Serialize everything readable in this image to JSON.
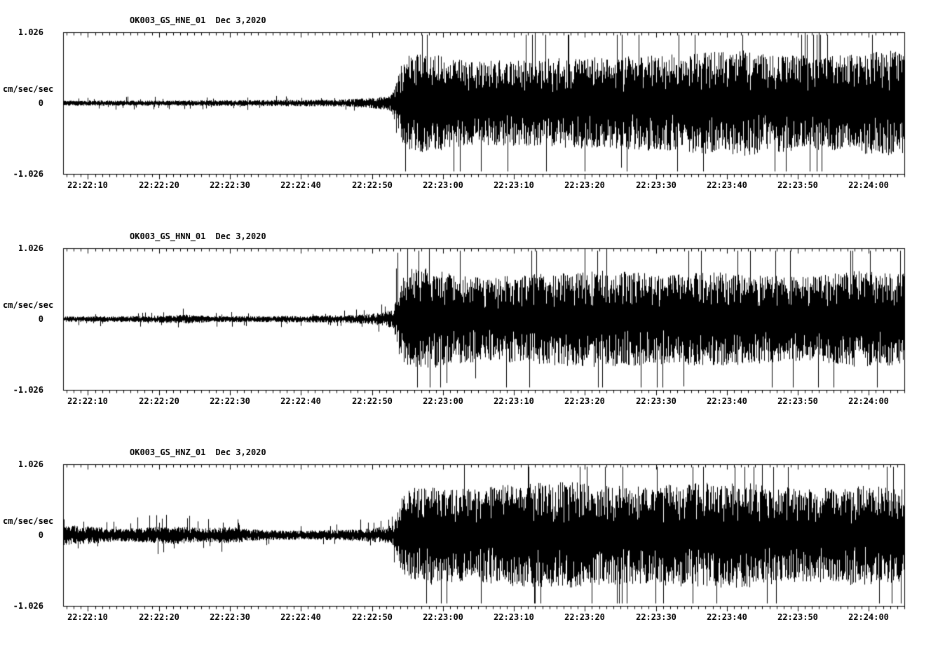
{
  "colors": {
    "trace": "#000000",
    "background": "#ffffff"
  },
  "chart_data": [
    {
      "type": "line",
      "subtype": "seismogram",
      "station_channel": "OK003_GS_HNE_01",
      "date": "Dec 3,2020",
      "ylabel": "cm/sec/sec",
      "ytick_labels": [
        "1.026",
        "0",
        "-1.026"
      ],
      "ylim": [
        -1.026,
        1.026
      ],
      "x_reference_time": "22:22:00",
      "x_start_s": 6.5,
      "x_end_s": 125,
      "x_tick_seconds": [
        10,
        20,
        30,
        40,
        50,
        60,
        70,
        80,
        90,
        100,
        110,
        120
      ],
      "x_ticklabels": [
        "22:22:10",
        "22:22:20",
        "22:22:30",
        "22:22:40",
        "22:22:50",
        "22:23:00",
        "22:23:10",
        "22:23:20",
        "22:23:30",
        "22:23:40",
        "22:23:50",
        "22:24:00"
      ],
      "minor_tick_interval_s": 1,
      "onset_s": 53.5,
      "envelope": [
        [
          6.5,
          0.035
        ],
        [
          20,
          0.035
        ],
        [
          35,
          0.04
        ],
        [
          45,
          0.045
        ],
        [
          50,
          0.07
        ],
        [
          52.5,
          0.1
        ],
        [
          53.5,
          0.3
        ],
        [
          54.5,
          0.62
        ],
        [
          58,
          0.66
        ],
        [
          64,
          0.55
        ],
        [
          72,
          0.58
        ],
        [
          80,
          0.6
        ],
        [
          88,
          0.62
        ],
        [
          96,
          0.66
        ],
        [
          102,
          0.7
        ],
        [
          108,
          0.64
        ],
        [
          114,
          0.62
        ],
        [
          120,
          0.68
        ],
        [
          125,
          0.7
        ]
      ],
      "seed": 11
    },
    {
      "type": "line",
      "subtype": "seismogram",
      "station_channel": "OK003_GS_HNN_01",
      "date": "Dec 3,2020",
      "ylabel": "cm/sec/sec",
      "ytick_labels": [
        "1.026",
        "0",
        "-1.026"
      ],
      "ylim": [
        -1.026,
        1.026
      ],
      "x_reference_time": "22:22:00",
      "x_start_s": 6.5,
      "x_end_s": 125,
      "x_tick_seconds": [
        10,
        20,
        30,
        40,
        50,
        60,
        70,
        80,
        90,
        100,
        110,
        120
      ],
      "x_ticklabels": [
        "22:22:10",
        "22:22:20",
        "22:22:30",
        "22:22:40",
        "22:22:50",
        "22:23:00",
        "22:23:10",
        "22:23:20",
        "22:23:30",
        "22:23:40",
        "22:23:50",
        "22:24:00"
      ],
      "minor_tick_interval_s": 1,
      "onset_s": 53.5,
      "envelope": [
        [
          6.5,
          0.035
        ],
        [
          18,
          0.04
        ],
        [
          24,
          0.06
        ],
        [
          27,
          0.04
        ],
        [
          35,
          0.04
        ],
        [
          45,
          0.05
        ],
        [
          50,
          0.07
        ],
        [
          53,
          0.12
        ],
        [
          54,
          0.55
        ],
        [
          56,
          0.72
        ],
        [
          60,
          0.62
        ],
        [
          66,
          0.55
        ],
        [
          74,
          0.6
        ],
        [
          82,
          0.64
        ],
        [
          90,
          0.6
        ],
        [
          98,
          0.62
        ],
        [
          106,
          0.58
        ],
        [
          112,
          0.56
        ],
        [
          118,
          0.64
        ],
        [
          125,
          0.6
        ]
      ],
      "seed": 23
    },
    {
      "type": "line",
      "subtype": "seismogram",
      "station_channel": "OK003_GS_HNZ_01",
      "date": "Dec 3,2020",
      "ylabel": "cm/sec/sec",
      "ytick_labels": [
        "1.026",
        "0",
        "-1.026"
      ],
      "ylim": [
        -1.026,
        1.026
      ],
      "x_reference_time": "22:22:00",
      "x_start_s": 6.5,
      "x_end_s": 125,
      "x_tick_seconds": [
        10,
        20,
        30,
        40,
        50,
        60,
        70,
        80,
        90,
        100,
        110,
        120
      ],
      "x_ticklabels": [
        "22:22:10",
        "22:22:20",
        "22:22:30",
        "22:22:40",
        "22:22:50",
        "22:23:00",
        "22:23:10",
        "22:23:20",
        "22:23:30",
        "22:23:40",
        "22:23:50",
        "22:24:00"
      ],
      "minor_tick_interval_s": 1,
      "onset_s": 53.5,
      "envelope": [
        [
          6.5,
          0.13
        ],
        [
          10,
          0.12
        ],
        [
          14,
          0.08
        ],
        [
          18,
          0.1
        ],
        [
          22,
          0.12
        ],
        [
          26,
          0.09
        ],
        [
          30,
          0.11
        ],
        [
          34,
          0.07
        ],
        [
          40,
          0.06
        ],
        [
          46,
          0.07
        ],
        [
          50,
          0.09
        ],
        [
          53,
          0.13
        ],
        [
          54.5,
          0.6
        ],
        [
          58,
          0.66
        ],
        [
          64,
          0.6
        ],
        [
          70,
          0.68
        ],
        [
          78,
          0.7
        ],
        [
          86,
          0.64
        ],
        [
          94,
          0.68
        ],
        [
          102,
          0.7
        ],
        [
          110,
          0.62
        ],
        [
          118,
          0.66
        ],
        [
          125,
          0.62
        ]
      ],
      "seed": 37
    }
  ]
}
